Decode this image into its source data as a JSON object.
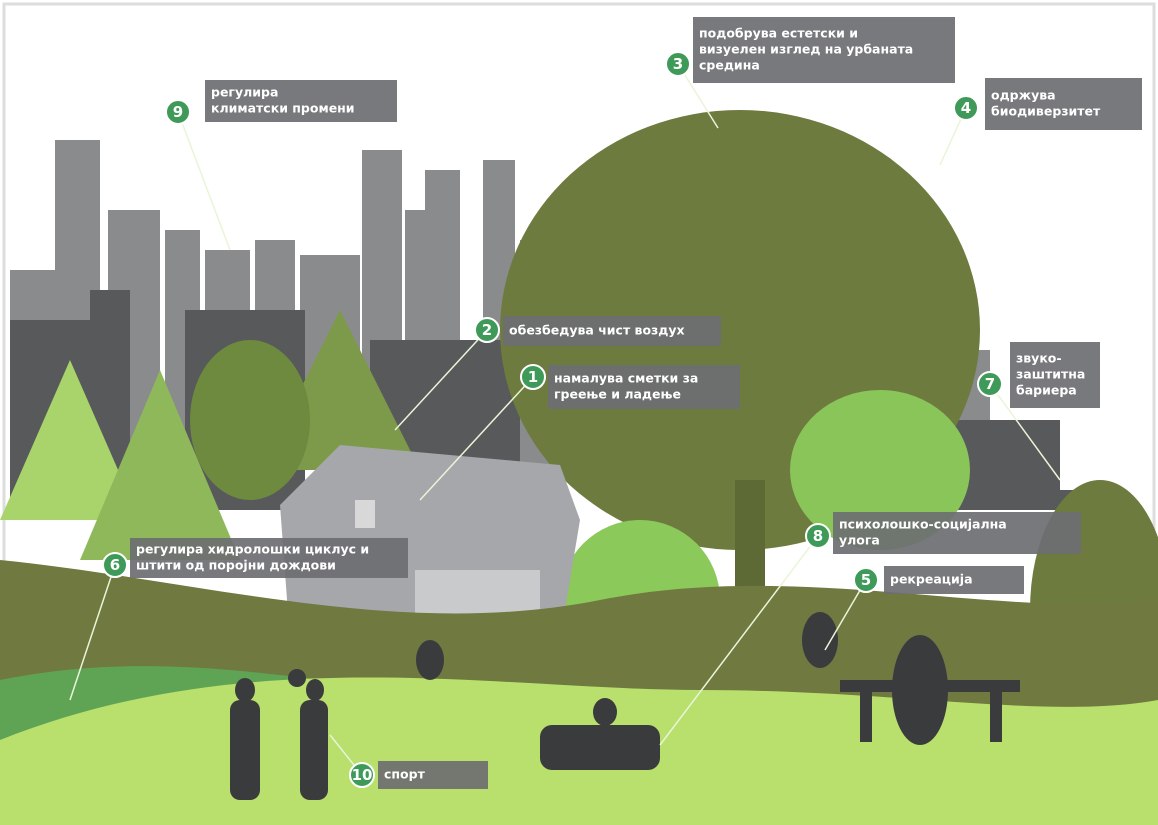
{
  "callouts": [
    {
      "number": 9,
      "lines": [
        "регулира",
        "климатски промени"
      ]
    },
    {
      "number": 3,
      "lines": [
        "подобрува естетски и",
        "визуелен изглед на урбаната",
        "средина"
      ]
    },
    {
      "number": 4,
      "lines": [
        "одржува",
        "биодиверзитет"
      ]
    },
    {
      "number": 2,
      "lines": [
        "обезбедува чист воздух"
      ]
    },
    {
      "number": 1,
      "lines": [
        "намалува сметки за",
        "греење и ладење"
      ]
    },
    {
      "number": 7,
      "lines": [
        "звуко-",
        "заштитна",
        "бариера"
      ]
    },
    {
      "number": 8,
      "lines": [
        "психолошко-социјална",
        "улога"
      ]
    },
    {
      "number": 5,
      "lines": [
        "рекреација"
      ]
    },
    {
      "number": 6,
      "lines": [
        "регулира хидролошки циклус и",
        "штити од поројни дождови"
      ]
    },
    {
      "number": 10,
      "lines": [
        "спорт"
      ]
    }
  ]
}
